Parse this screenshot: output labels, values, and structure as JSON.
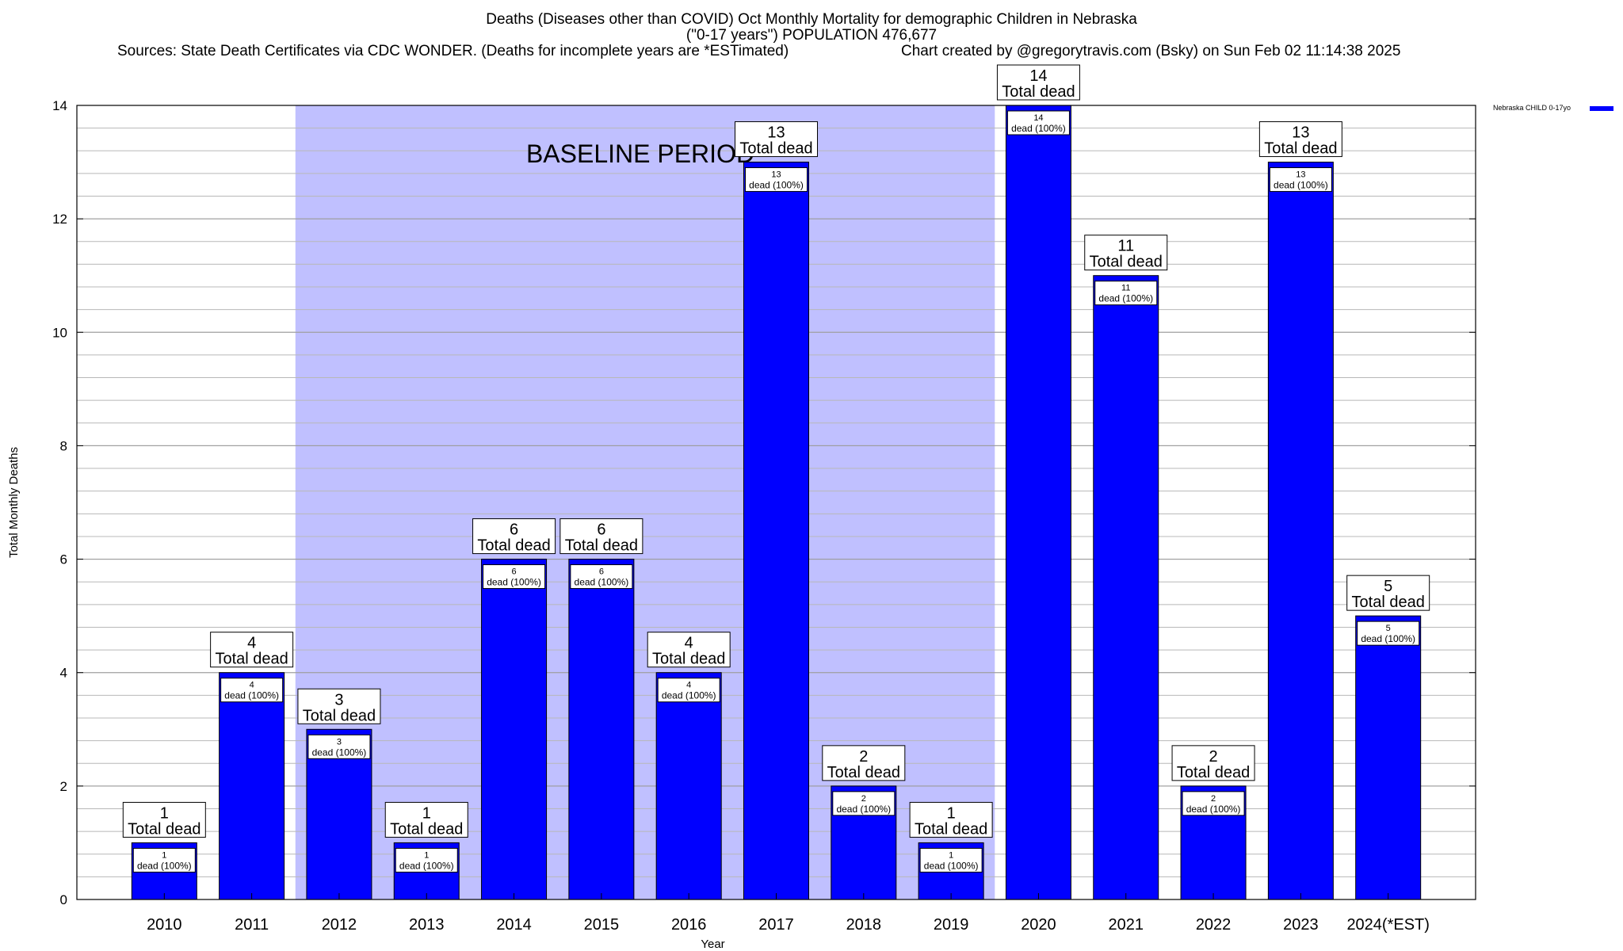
{
  "header": {
    "title_line1": "Deaths (Diseases other than COVID) Oct Monthly Mortality for demographic Children in Nebraska",
    "title_line2": "(\"0-17 years\") POPULATION 476,677",
    "sources": "Sources: State Death Certificates via CDC WONDER. (Deaths for incomplete years are *ESTimated)",
    "credit": "Chart created by @gregorytravis.com (Bsky) on Sun Feb 02 11:14:38 2025"
  },
  "legend": {
    "label": "Nebraska CHILD 0-17yo"
  },
  "colors": {
    "bar": "#0000ff",
    "baseline": "#c0c0ff",
    "grid": "#b8b8b8"
  },
  "chart_data": {
    "type": "bar",
    "title": "Deaths (Diseases other than COVID) Oct Monthly Mortality for demographic Children in Nebraska",
    "xlabel": "Year",
    "ylabel": "Total Monthly Deaths",
    "ylim": [
      0,
      14
    ],
    "yticks": [
      0,
      2,
      4,
      6,
      8,
      10,
      12,
      14
    ],
    "grid": true,
    "legend_position": "top-right",
    "categories": [
      "2010",
      "2011",
      "2012",
      "2013",
      "2014",
      "2015",
      "2016",
      "2017",
      "2018",
      "2019",
      "2020",
      "2021",
      "2022",
      "2023",
      "2024(*EST)"
    ],
    "series": [
      {
        "name": "Nebraska CHILD 0-17yo",
        "values": [
          1,
          4,
          3,
          1,
          6,
          6,
          4,
          13,
          2,
          1,
          14,
          11,
          2,
          13,
          5
        ]
      }
    ],
    "total_label": "Total dead",
    "inner_label_suffix": "dead (100%)",
    "baseline_period": {
      "label": "BASELINE PERIOD",
      "from_category": "2012",
      "to_category": "2019"
    }
  }
}
